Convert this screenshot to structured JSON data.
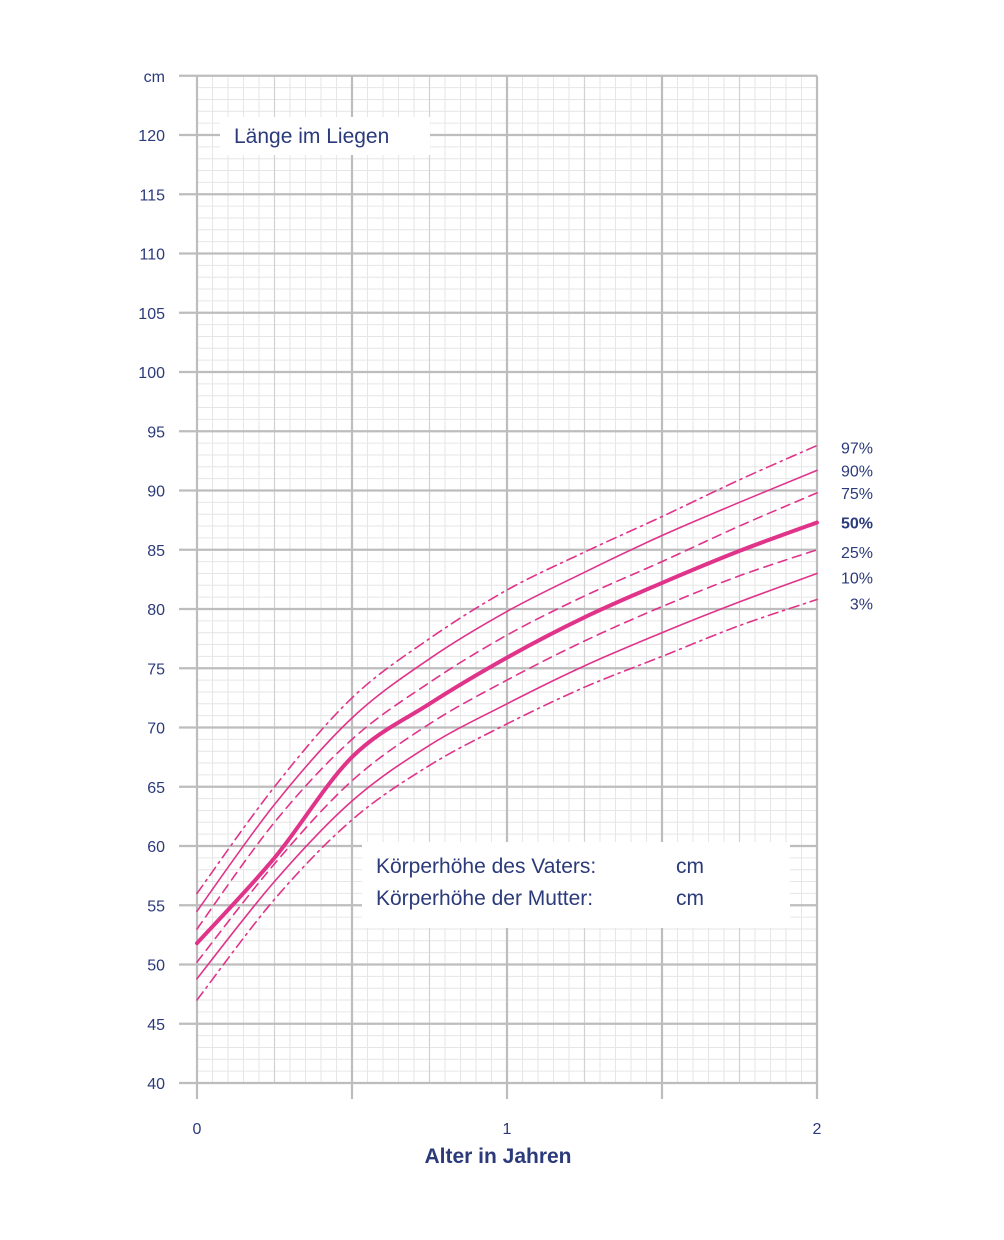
{
  "chart_data": {
    "type": "line",
    "title": "Länge im Liegen",
    "xlabel": "Alter in Jahren",
    "ylabel": "cm",
    "xlim": [
      0,
      2
    ],
    "ylim": [
      40,
      125
    ],
    "x_ticks": [
      "0",
      "1",
      "2"
    ],
    "y_ticks": [
      "40",
      "45",
      "50",
      "55",
      "60",
      "65",
      "70",
      "75",
      "80",
      "85",
      "90",
      "95",
      "100",
      "105",
      "110",
      "115",
      "120",
      "cm"
    ],
    "grid": true,
    "line_color": "#e0338a",
    "series": [
      {
        "name": "97%",
        "style": "dashdot",
        "x": [
          0,
          0.25,
          0.5,
          0.75,
          1,
          1.25,
          1.5,
          1.75,
          2
        ],
        "y": [
          56.0,
          65.0,
          72.5,
          77.5,
          81.6,
          84.8,
          87.8,
          90.9,
          93.8
        ]
      },
      {
        "name": "90%",
        "style": "solid",
        "x": [
          0,
          0.25,
          0.5,
          0.75,
          1,
          1.25,
          1.5,
          1.75,
          2
        ],
        "y": [
          54.5,
          63.5,
          70.8,
          75.8,
          79.8,
          83.1,
          86.2,
          89.0,
          91.7
        ]
      },
      {
        "name": "75%",
        "style": "dashed",
        "x": [
          0,
          0.25,
          0.5,
          0.75,
          1,
          1.25,
          1.5,
          1.75,
          2
        ],
        "y": [
          53.0,
          62.0,
          69.0,
          73.8,
          77.8,
          81.1,
          84.0,
          87.0,
          89.8
        ]
      },
      {
        "name": "50%",
        "style": "bold",
        "x": [
          0,
          0.25,
          0.5,
          0.75,
          1,
          1.25,
          1.5,
          1.75,
          2
        ],
        "y": [
          51.8,
          59.0,
          67.5,
          72.0,
          75.9,
          79.3,
          82.2,
          84.9,
          87.3
        ]
      },
      {
        "name": "25%",
        "style": "dashed",
        "x": [
          0,
          0.25,
          0.5,
          0.75,
          1,
          1.25,
          1.5,
          1.75,
          2
        ],
        "y": [
          50.2,
          58.5,
          65.5,
          70.3,
          74.0,
          77.3,
          80.2,
          82.8,
          85.0
        ]
      },
      {
        "name": "10%",
        "style": "solid",
        "x": [
          0,
          0.25,
          0.5,
          0.75,
          1,
          1.25,
          1.5,
          1.75,
          2
        ],
        "y": [
          48.8,
          57.0,
          63.8,
          68.5,
          72.0,
          75.2,
          78.0,
          80.6,
          83.0
        ]
      },
      {
        "name": "3%",
        "style": "dashdot",
        "x": [
          0,
          0.25,
          0.5,
          0.75,
          1,
          1.25,
          1.5,
          1.75,
          2
        ],
        "y": [
          47.0,
          55.5,
          62.2,
          66.8,
          70.3,
          73.4,
          76.0,
          78.6,
          80.8
        ]
      }
    ]
  },
  "notes": {
    "father_label": "Körperhöhe des Vaters:",
    "father_unit": "cm",
    "mother_label": "Körperhöhe der Mutter:",
    "mother_unit": "cm"
  }
}
